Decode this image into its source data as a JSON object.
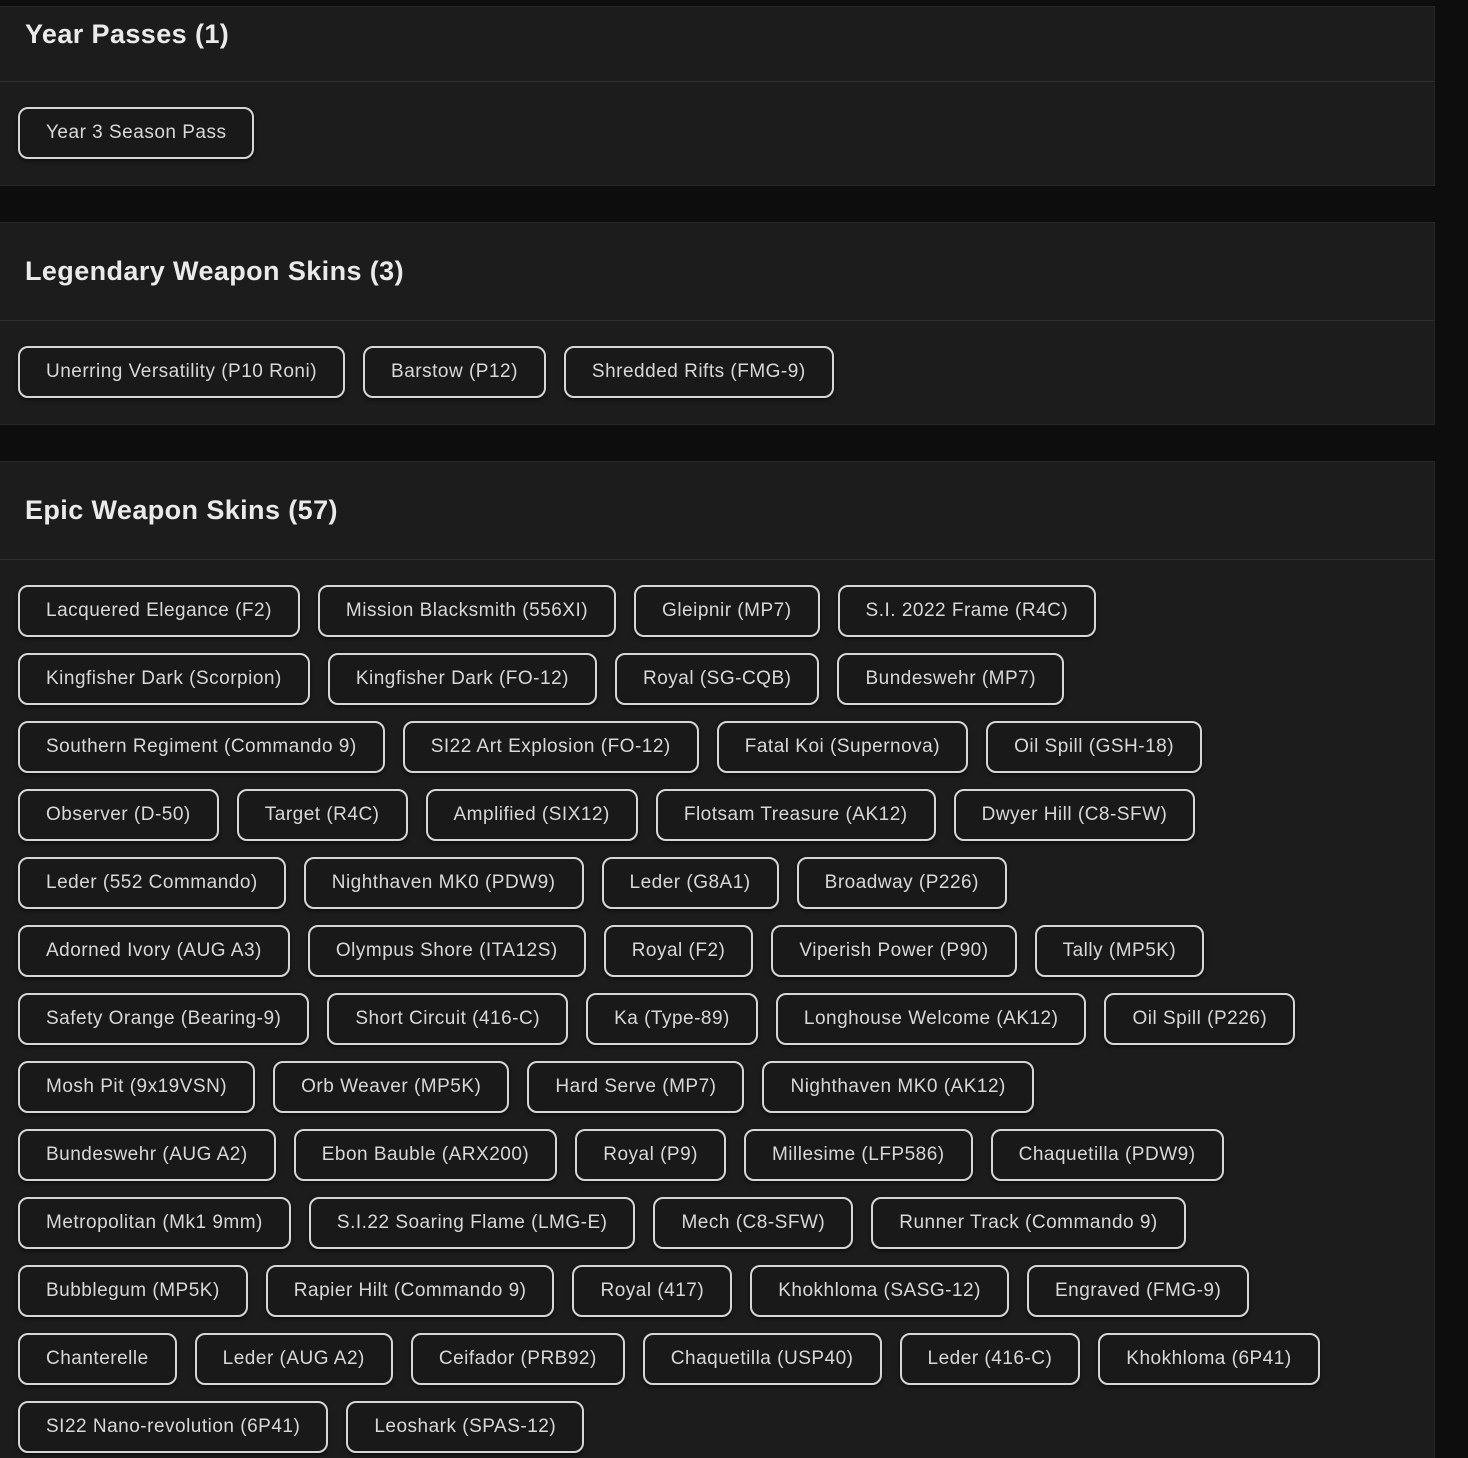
{
  "colors": {
    "page_bg": "#0d0d0d",
    "card_bg": "#1c1c1c",
    "card_border": "#272727",
    "divider": "#2f2f2f",
    "heading_text": "#eaeaea",
    "chip_bg": "#191919",
    "chip_border": "#d6d6d6",
    "chip_text": "#d8d8d8"
  },
  "sections": [
    {
      "id": "year-passes",
      "heading": "Year Passes (1)",
      "items": [
        "Year 3 Season Pass"
      ]
    },
    {
      "id": "legendary-weapon-skins",
      "heading": "Legendary Weapon Skins (3)",
      "items": [
        "Unerring Versatility (P10 Roni)",
        "Barstow (P12)",
        "Shredded Rifts (FMG-9)"
      ]
    },
    {
      "id": "epic-weapon-skins",
      "heading": "Epic Weapon Skins (57)",
      "items": [
        "Lacquered Elegance (F2)",
        "Mission Blacksmith (556XI)",
        "Gleipnir (MP7)",
        "S.I. 2022 Frame (R4C)",
        "Kingfisher Dark (Scorpion)",
        "Kingfisher Dark (FO-12)",
        "Royal (SG-CQB)",
        "Bundeswehr (MP7)",
        "Southern Regiment (Commando 9)",
        "SI22 Art Explosion (FO-12)",
        "Fatal Koi (Supernova)",
        "Oil Spill (GSH-18)",
        "Observer (D-50)",
        "Target (R4C)",
        "Amplified (SIX12)",
        "Flotsam Treasure (AK12)",
        "Dwyer Hill (C8-SFW)",
        "Leder (552 Commando)",
        "Nighthaven MK0 (PDW9)",
        "Leder (G8A1)",
        "Broadway (P226)",
        "Adorned Ivory (AUG A3)",
        "Olympus Shore (ITA12S)",
        "Royal (F2)",
        "Viperish Power (P90)",
        "Tally (MP5K)",
        "Safety Orange (Bearing-9)",
        "Short Circuit (416-C)",
        "Ka (Type-89)",
        "Longhouse Welcome (AK12)",
        "Oil Spill (P226)",
        "Mosh Pit (9x19VSN)",
        "Orb Weaver (MP5K)",
        "Hard Serve (MP7)",
        "Nighthaven MK0 (AK12)",
        "Bundeswehr (AUG A2)",
        "Ebon Bauble (ARX200)",
        "Royal (P9)",
        "Millesime (LFP586)",
        "Chaquetilla (PDW9)",
        "Metropolitan (Mk1 9mm)",
        "S.I.22 Soaring Flame (LMG-E)",
        "Mech (C8-SFW)",
        "Runner Track (Commando 9)",
        "Bubblegum (MP5K)",
        "Rapier Hilt (Commando 9)",
        "Royal (417)",
        "Khokhloma (SASG-12)",
        "Engraved (FMG-9)",
        "Chanterelle",
        "Leder (AUG A2)",
        "Ceifador (PRB92)",
        "Chaquetilla (USP40)",
        "Leder (416-C)",
        "Khokhloma (6P41)",
        "SI22 Nano-revolution (6P41)",
        "Leoshark (SPAS-12)"
      ]
    }
  ]
}
